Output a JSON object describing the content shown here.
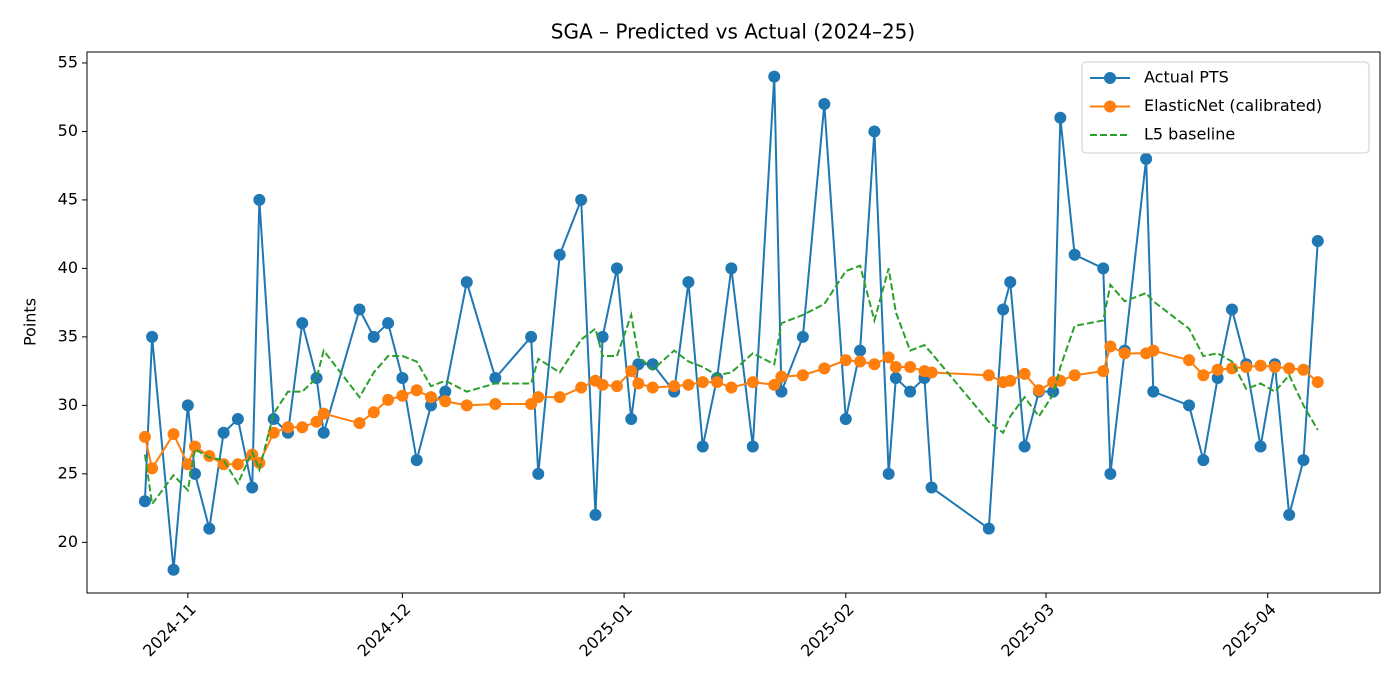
{
  "chart_data": {
    "type": "line",
    "title": "SGA – Predicted vs Actual (2024–25)",
    "y_label": "Points",
    "x": [
      -6,
      -5,
      -2,
      0,
      1,
      3,
      5,
      7,
      9,
      10,
      12,
      14,
      16,
      18,
      19,
      24,
      26,
      28,
      30,
      32,
      34,
      36,
      39,
      43,
      48,
      49,
      52,
      55,
      57,
      58,
      60,
      62,
      63,
      65,
      68,
      70,
      72,
      74,
      76,
      79,
      82,
      83,
      86,
      89,
      92,
      94,
      96,
      98,
      99,
      101,
      103,
      104,
      112,
      114,
      115,
      117,
      119,
      121,
      122,
      124,
      128,
      129,
      131,
      134,
      135,
      140,
      142,
      144,
      146,
      148,
      150,
      152,
      154,
      156,
      158
    ],
    "series": [
      {
        "name": "Actual PTS",
        "color": "#1f77b4",
        "linestyle": "solid",
        "marker": "o",
        "values": [
          23,
          35,
          18,
          30,
          25,
          21,
          28,
          29,
          24,
          45,
          29,
          28,
          36,
          32,
          28,
          37,
          35,
          36,
          32,
          26,
          30,
          31,
          39,
          32,
          35,
          25,
          41,
          45,
          22,
          35,
          40,
          29,
          33,
          33,
          31,
          39,
          27,
          32,
          40,
          27,
          54,
          31,
          35,
          52,
          29,
          34,
          50,
          25,
          32,
          31,
          32,
          24,
          21,
          37,
          39,
          27,
          31,
          31,
          51,
          41,
          40,
          25,
          34,
          48,
          31,
          30,
          26,
          32,
          37,
          33,
          27,
          33,
          22,
          26,
          42
        ]
      },
      {
        "name": "ElasticNet (calibrated)",
        "color": "#ff7f0e",
        "linestyle": "solid",
        "marker": "o",
        "values": [
          27.7,
          25.4,
          27.9,
          25.7,
          27.0,
          26.3,
          25.7,
          25.7,
          26.4,
          25.8,
          28.0,
          28.4,
          28.4,
          28.8,
          29.4,
          28.7,
          29.5,
          30.4,
          30.7,
          31.1,
          30.6,
          30.3,
          30.0,
          30.1,
          30.1,
          30.6,
          30.6,
          31.3,
          31.8,
          31.5,
          31.4,
          32.5,
          31.6,
          31.3,
          31.4,
          31.5,
          31.7,
          31.7,
          31.3,
          31.7,
          31.5,
          32.1,
          32.2,
          32.7,
          33.3,
          33.2,
          33.0,
          33.5,
          32.8,
          32.8,
          32.5,
          32.4,
          32.2,
          31.7,
          31.8,
          32.3,
          31.1,
          31.7,
          31.8,
          32.2,
          32.5,
          34.3,
          33.8,
          33.8,
          34.0,
          33.3,
          32.2,
          32.6,
          32.7,
          32.8,
          32.9,
          32.8,
          32.7,
          32.6,
          31.7
        ]
      },
      {
        "name": "L5 baseline",
        "color": "#2ca02c",
        "linestyle": "dashed",
        "marker": "none",
        "values": [
          26.4,
          22.8,
          24.9,
          23.8,
          26.8,
          26.2,
          26.0,
          24.3,
          26.6,
          25.3,
          29.4,
          31.0,
          31.0,
          32.0,
          34.0,
          30.6,
          32.4,
          33.6,
          33.6,
          33.2,
          31.4,
          31.8,
          31.0,
          31.6,
          31.6,
          33.4,
          32.4,
          34.8,
          35.6,
          33.6,
          33.6,
          36.6,
          33.6,
          32.6,
          34.0,
          33.2,
          32.8,
          32.2,
          32.4,
          33.8,
          33.0,
          36.0,
          36.6,
          37.4,
          39.8,
          40.2,
          36.2,
          40.0,
          36.8,
          34.0,
          34.4,
          33.8,
          28.8,
          28.0,
          29.2,
          30.6,
          29.2,
          30.8,
          32.8,
          35.8,
          36.2,
          38.8,
          37.6,
          38.2,
          37.6,
          35.6,
          33.6,
          33.8,
          33.2,
          31.2,
          31.6,
          31.0,
          32.2,
          30.0,
          28.2
        ]
      }
    ],
    "xlim": [
      -14.1,
      166.7
    ],
    "xticks": [
      {
        "value": 0,
        "label": "2024-11"
      },
      {
        "value": 30,
        "label": "2024-12"
      },
      {
        "value": 61,
        "label": "2025-01"
      },
      {
        "value": 92,
        "label": "2025-02"
      },
      {
        "value": 120,
        "label": "2025-03"
      },
      {
        "value": 151,
        "label": "2025-04"
      }
    ],
    "ylim": [
      16.3,
      55.8
    ],
    "yticks": [
      20,
      25,
      30,
      35,
      40,
      45,
      50,
      55
    ],
    "grid": false,
    "legend": "upper right"
  }
}
